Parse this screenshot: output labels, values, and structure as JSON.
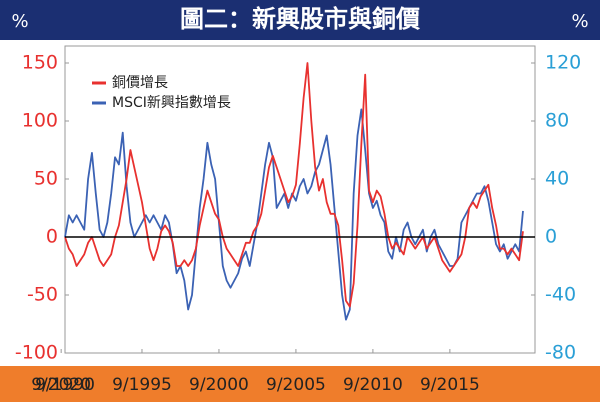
{
  "chart_data": {
    "type": "line",
    "title": "圖二：新興股市與銅價",
    "ylabel": "%",
    "y2label": "%",
    "x": [
      "9/1990",
      "12/1990",
      "3/1991",
      "6/1991",
      "9/1991",
      "12/1991",
      "3/1992",
      "6/1992",
      "9/1992",
      "12/1992",
      "3/1993",
      "6/1993",
      "9/1993",
      "12/1993",
      "3/1994",
      "6/1994",
      "9/1994",
      "12/1994",
      "3/1995",
      "6/1995",
      "9/1995",
      "12/1995",
      "3/1996",
      "6/1996",
      "9/1996",
      "12/1996",
      "3/1997",
      "6/1997",
      "9/1997",
      "12/1997",
      "3/1998",
      "6/1998",
      "9/1998",
      "12/1998",
      "3/1999",
      "6/1999",
      "9/1999",
      "12/1999",
      "3/2000",
      "6/2000",
      "9/2000",
      "12/2000",
      "3/2001",
      "6/2001",
      "9/2001",
      "12/2001",
      "3/2002",
      "6/2002",
      "9/2002",
      "12/2002",
      "3/2003",
      "6/2003",
      "9/2003",
      "12/2003",
      "3/2004",
      "6/2004",
      "9/2004",
      "12/2004",
      "3/2005",
      "6/2005",
      "9/2005",
      "12/2005",
      "3/2006",
      "6/2006",
      "9/2006",
      "12/2006",
      "3/2007",
      "6/2007",
      "9/2007",
      "12/2007",
      "3/2008",
      "6/2008",
      "9/2008",
      "12/2008",
      "3/2009",
      "6/2009",
      "9/2009",
      "12/2009",
      "3/2010",
      "6/2010",
      "9/2010",
      "12/2010",
      "3/2011",
      "6/2011",
      "9/2011",
      "12/2011",
      "3/2012",
      "6/2012",
      "9/2012",
      "12/2012",
      "3/2013",
      "6/2013",
      "9/2013",
      "12/2013",
      "3/2014",
      "6/2014",
      "9/2014",
      "12/2014",
      "3/2015",
      "6/2015",
      "9/2015",
      "12/2015",
      "3/2016",
      "6/2016",
      "9/2016",
      "12/2016",
      "3/2017",
      "6/2017",
      "9/2017",
      "12/2017",
      "3/2018",
      "6/2018",
      "9/2018",
      "12/2018",
      "3/2019",
      "6/2019",
      "9/2019",
      "12/2019",
      "3/2020",
      "6/2020"
    ],
    "xticks": [
      "9/1990",
      "9/1995",
      "9/2000",
      "9/2005",
      "9/2010",
      "9/2015",
      "9/2020"
    ],
    "series": [
      {
        "name": "銅價增長",
        "color": "#e8312f",
        "values": [
          0,
          -10,
          -15,
          -25,
          -20,
          -15,
          -5,
          0,
          -10,
          -20,
          -25,
          -20,
          -15,
          0,
          10,
          30,
          50,
          75,
          60,
          45,
          30,
          10,
          -10,
          -20,
          -10,
          5,
          10,
          5,
          -5,
          -25,
          -25,
          -20,
          -25,
          -20,
          -10,
          10,
          25,
          40,
          30,
          20,
          15,
          0,
          -10,
          -15,
          -20,
          -25,
          -15,
          -5,
          -5,
          5,
          10,
          20,
          40,
          60,
          70,
          60,
          50,
          40,
          30,
          35,
          45,
          80,
          120,
          150,
          100,
          60,
          40,
          50,
          30,
          20,
          20,
          10,
          -20,
          -55,
          -60,
          -40,
          10,
          80,
          140,
          40,
          30,
          40,
          35,
          20,
          0,
          -10,
          -5,
          -10,
          -15,
          0,
          -5,
          -10,
          -5,
          0,
          -10,
          -5,
          0,
          -10,
          -20,
          -25,
          -30,
          -25,
          -20,
          -15,
          0,
          25,
          30,
          25,
          35,
          40,
          45,
          25,
          10,
          -10,
          -10,
          -15,
          -10,
          -15,
          -20,
          5
        ]
      },
      {
        "name": "MSCI新興指數增長",
        "color": "#3b62b4",
        "axis": "y2",
        "values": [
          0,
          15,
          10,
          15,
          10,
          5,
          40,
          58,
          30,
          5,
          0,
          10,
          30,
          55,
          50,
          72,
          35,
          10,
          0,
          5,
          10,
          15,
          10,
          15,
          10,
          5,
          15,
          10,
          -5,
          -25,
          -20,
          -30,
          -50,
          -40,
          -10,
          20,
          40,
          65,
          50,
          40,
          10,
          -20,
          -30,
          -35,
          -30,
          -25,
          -15,
          -10,
          -20,
          -5,
          10,
          30,
          50,
          65,
          55,
          20,
          25,
          30,
          20,
          30,
          25,
          35,
          40,
          30,
          35,
          45,
          50,
          60,
          70,
          50,
          20,
          -10,
          -40,
          -57,
          -50,
          30,
          70,
          88,
          60,
          30,
          20,
          25,
          15,
          10,
          -10,
          -15,
          0,
          -10,
          5,
          10,
          0,
          -5,
          0,
          5,
          -10,
          0,
          5,
          -5,
          -10,
          -15,
          -20,
          -20,
          -15,
          10,
          15,
          20,
          25,
          30,
          30,
          35,
          25,
          10,
          -5,
          -10,
          -5,
          -15,
          -10,
          -5,
          -10,
          18
        ]
      }
    ],
    "ylim": [
      -100,
      150
    ],
    "yticks": [
      -100,
      -50,
      0,
      50,
      100,
      150
    ],
    "y2lim": [
      -80,
      120
    ],
    "y2ticks": [
      -80,
      -40,
      0,
      40,
      80,
      120
    ],
    "zero_line": true,
    "legend": "upper left"
  }
}
